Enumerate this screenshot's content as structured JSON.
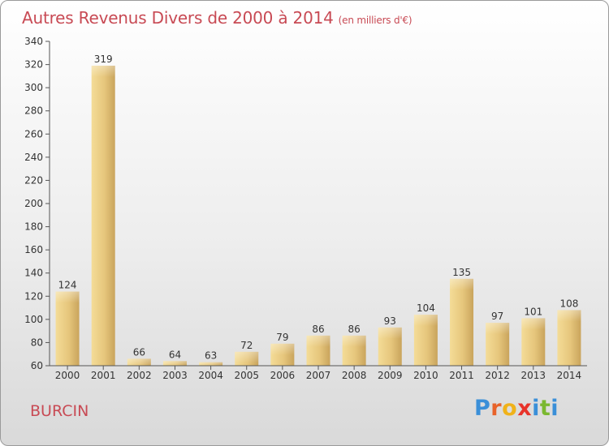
{
  "title": "Autres Revenus Divers de 2000 à 2014",
  "title_unit": "(en milliers d'€)",
  "commune": "BURCIN",
  "logo": {
    "letters": [
      "P",
      "r",
      "o",
      "x",
      "i",
      "t",
      "i"
    ],
    "colors": [
      "#3a8fd8",
      "#e8632a",
      "#f0b21a",
      "#e8332a",
      "#3a8fd8",
      "#7ab830",
      "#3a8fd8"
    ]
  },
  "colors": {
    "title": "#c84a54",
    "bar_light": "#f5dd98",
    "bar_dark": "#c9a860",
    "axis_text": "#333333"
  },
  "chart_data": {
    "type": "bar",
    "title": "Autres Revenus Divers de 2000 à 2014",
    "subtitle": "(en milliers d'€)",
    "categories": [
      "2000",
      "2001",
      "2002",
      "2003",
      "2004",
      "2005",
      "2006",
      "2007",
      "2008",
      "2009",
      "2010",
      "2011",
      "2012",
      "2013",
      "2014"
    ],
    "values": [
      124,
      319,
      66,
      64,
      63,
      72,
      79,
      86,
      86,
      93,
      104,
      135,
      97,
      101,
      108
    ],
    "ylim": [
      60,
      340
    ],
    "yticks": [
      60,
      80,
      100,
      120,
      140,
      160,
      180,
      200,
      220,
      240,
      260,
      280,
      300,
      320,
      340
    ],
    "grid": false,
    "data_labels": true
  }
}
